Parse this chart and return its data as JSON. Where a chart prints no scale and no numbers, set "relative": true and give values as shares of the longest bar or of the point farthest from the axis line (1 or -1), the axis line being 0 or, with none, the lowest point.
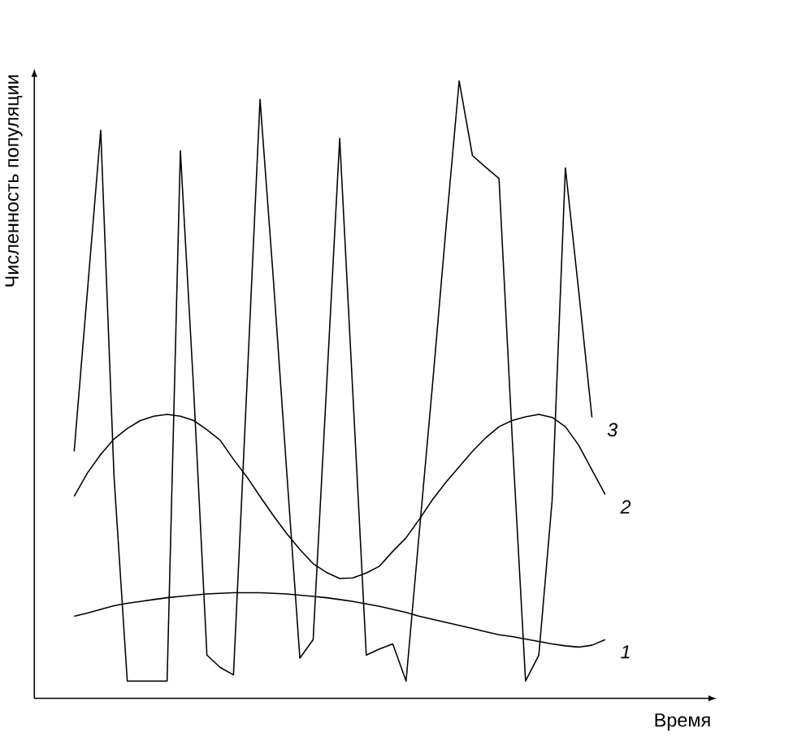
{
  "chart_data": {
    "type": "line",
    "relative": true,
    "xlabel": "Время",
    "ylabel": "Численность популяции",
    "marker": "none",
    "line_style": "solid",
    "categories": [
      null,
      null,
      null,
      null,
      null,
      null,
      null,
      null,
      null,
      null,
      null,
      null,
      null,
      null,
      null,
      null,
      null,
      null,
      null,
      null,
      null,
      null,
      null,
      null,
      null,
      null,
      null,
      null,
      null,
      null,
      null,
      null,
      null,
      null,
      null,
      null,
      null,
      null,
      null,
      null,
      null
    ],
    "series": [
      {
        "name": "1",
        "color": "#000000",
        "values": [
          0.133,
          0.138,
          0.144,
          0.15,
          0.154,
          0.157,
          0.16,
          0.163,
          0.165,
          0.167,
          0.169,
          0.17,
          0.171,
          0.171,
          0.171,
          0.17,
          0.169,
          0.167,
          0.165,
          0.163,
          0.16,
          0.157,
          0.153,
          0.149,
          0.144,
          0.139,
          0.133,
          0.128,
          0.123,
          0.118,
          0.113,
          0.108,
          0.103,
          0.1,
          0.096,
          0.092,
          0.088,
          0.085,
          0.083,
          0.086,
          0.095
        ]
      },
      {
        "name": "2",
        "color": "#000000",
        "values": [
          0.327,
          0.365,
          0.395,
          0.42,
          0.437,
          0.45,
          0.457,
          0.46,
          0.457,
          0.45,
          0.435,
          0.418,
          0.387,
          0.359,
          0.327,
          0.296,
          0.267,
          0.241,
          0.218,
          0.204,
          0.194,
          0.195,
          0.203,
          0.214,
          0.238,
          0.26,
          0.29,
          0.322,
          0.35,
          0.375,
          0.4,
          0.422,
          0.44,
          0.45,
          0.456,
          0.46,
          0.455,
          0.44,
          0.41,
          0.37,
          0.33
        ]
      },
      {
        "name": "3",
        "color": "#000000",
        "values": [
          0.4,
          0.66,
          0.92,
          0.36,
          0.028,
          0.028,
          0.028,
          0.028,
          0.887,
          0.5,
          0.07,
          0.05,
          0.038,
          0.5,
          0.97,
          0.68,
          0.37,
          0.065,
          0.095,
          0.5,
          0.907,
          0.49,
          0.07,
          0.08,
          0.088,
          0.028,
          0.27,
          0.51,
          0.76,
          1.0,
          0.879,
          0.86,
          0.842,
          0.42,
          0.028,
          0.07,
          0.32,
          0.859,
          0.66,
          0.455,
          null
        ]
      }
    ]
  }
}
